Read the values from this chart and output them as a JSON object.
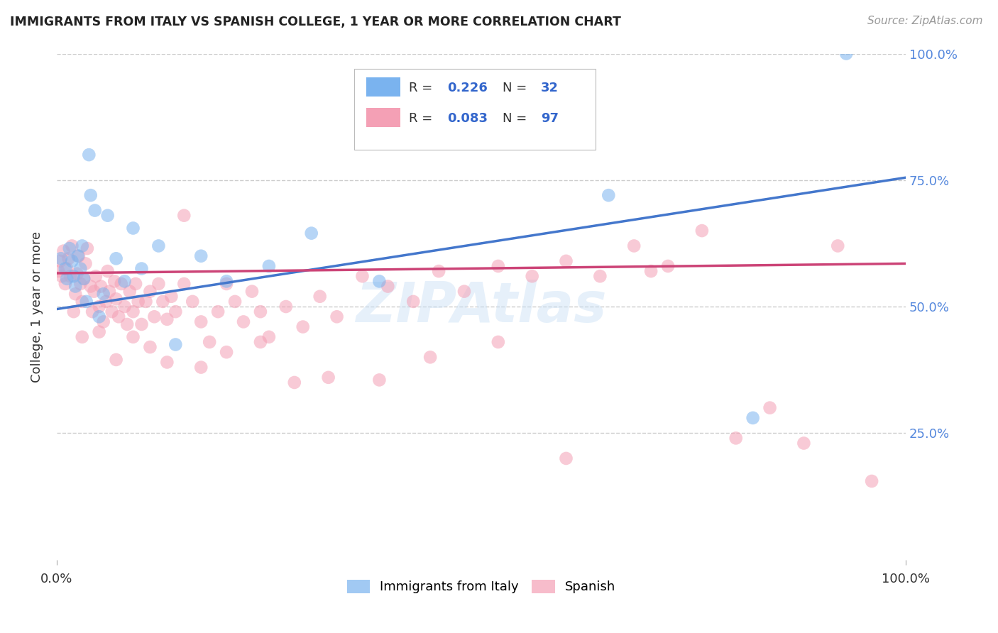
{
  "title": "IMMIGRANTS FROM ITALY VS SPANISH COLLEGE, 1 YEAR OR MORE CORRELATION CHART",
  "source_text": "Source: ZipAtlas.com",
  "ylabel": "College, 1 year or more",
  "xlim": [
    0,
    1.0
  ],
  "ylim": [
    0,
    1.0
  ],
  "grid_color": "#cccccc",
  "background_color": "#ffffff",
  "blue_color": "#7ab3ef",
  "pink_color": "#f4a0b5",
  "blue_line_color": "#4477cc",
  "pink_line_color": "#cc4477",
  "blue_r": 0.226,
  "blue_n": 32,
  "pink_r": 0.083,
  "pink_n": 97,
  "blue_line_x0": 0.0,
  "blue_line_y0": 0.495,
  "blue_line_x1": 1.0,
  "blue_line_y1": 0.755,
  "pink_line_x0": 0.0,
  "pink_line_y0": 0.566,
  "pink_line_x1": 1.0,
  "pink_line_y1": 0.585,
  "blue_x": [
    0.005,
    0.01,
    0.012,
    0.015,
    0.018,
    0.02,
    0.022,
    0.025,
    0.028,
    0.03,
    0.032,
    0.035,
    0.038,
    0.04,
    0.045,
    0.05,
    0.055,
    0.06,
    0.07,
    0.08,
    0.09,
    0.1,
    0.12,
    0.14,
    0.17,
    0.2,
    0.25,
    0.3,
    0.38,
    0.65,
    0.82,
    0.93
  ],
  "blue_y": [
    0.595,
    0.575,
    0.555,
    0.615,
    0.59,
    0.56,
    0.54,
    0.6,
    0.575,
    0.62,
    0.555,
    0.51,
    0.8,
    0.72,
    0.69,
    0.48,
    0.525,
    0.68,
    0.595,
    0.55,
    0.655,
    0.575,
    0.62,
    0.425,
    0.6,
    0.55,
    0.58,
    0.645,
    0.55,
    0.72,
    0.28,
    1.0
  ],
  "pink_x": [
    0.002,
    0.004,
    0.006,
    0.008,
    0.01,
    0.012,
    0.014,
    0.016,
    0.018,
    0.02,
    0.022,
    0.024,
    0.026,
    0.028,
    0.03,
    0.032,
    0.034,
    0.036,
    0.04,
    0.042,
    0.044,
    0.046,
    0.05,
    0.052,
    0.055,
    0.058,
    0.06,
    0.062,
    0.065,
    0.068,
    0.07,
    0.073,
    0.076,
    0.08,
    0.083,
    0.086,
    0.09,
    0.093,
    0.096,
    0.1,
    0.105,
    0.11,
    0.115,
    0.12,
    0.125,
    0.13,
    0.135,
    0.14,
    0.15,
    0.16,
    0.17,
    0.18,
    0.19,
    0.2,
    0.21,
    0.22,
    0.23,
    0.24,
    0.25,
    0.27,
    0.29,
    0.31,
    0.33,
    0.36,
    0.39,
    0.42,
    0.45,
    0.48,
    0.52,
    0.56,
    0.6,
    0.64,
    0.68,
    0.72,
    0.76,
    0.8,
    0.84,
    0.88,
    0.92,
    0.96,
    0.03,
    0.05,
    0.07,
    0.09,
    0.11,
    0.13,
    0.15,
    0.17,
    0.2,
    0.24,
    0.28,
    0.32,
    0.38,
    0.44,
    0.52,
    0.6,
    0.7
  ],
  "pink_y": [
    0.57,
    0.59,
    0.56,
    0.61,
    0.545,
    0.575,
    0.595,
    0.56,
    0.62,
    0.49,
    0.525,
    0.565,
    0.6,
    0.545,
    0.51,
    0.555,
    0.585,
    0.615,
    0.54,
    0.49,
    0.53,
    0.56,
    0.5,
    0.54,
    0.47,
    0.51,
    0.57,
    0.53,
    0.49,
    0.55,
    0.515,
    0.48,
    0.545,
    0.5,
    0.465,
    0.53,
    0.49,
    0.545,
    0.51,
    0.465,
    0.51,
    0.53,
    0.48,
    0.545,
    0.51,
    0.475,
    0.52,
    0.49,
    0.545,
    0.51,
    0.47,
    0.43,
    0.49,
    0.545,
    0.51,
    0.47,
    0.53,
    0.49,
    0.44,
    0.5,
    0.46,
    0.52,
    0.48,
    0.56,
    0.54,
    0.51,
    0.57,
    0.53,
    0.58,
    0.56,
    0.59,
    0.56,
    0.62,
    0.58,
    0.65,
    0.24,
    0.3,
    0.23,
    0.62,
    0.155,
    0.44,
    0.45,
    0.395,
    0.44,
    0.42,
    0.39,
    0.68,
    0.38,
    0.41,
    0.43,
    0.35,
    0.36,
    0.355,
    0.4,
    0.43,
    0.2,
    0.57
  ]
}
